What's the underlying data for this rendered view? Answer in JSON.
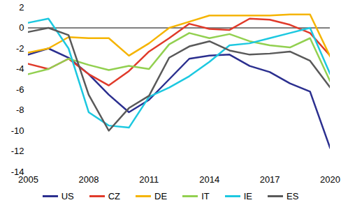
{
  "chart_data": {
    "type": "line",
    "x": [
      2005,
      2006,
      2007,
      2008,
      2009,
      2010,
      2011,
      2012,
      2013,
      2014,
      2015,
      2016,
      2017,
      2018,
      2019,
      2020
    ],
    "xlim": [
      2005,
      2020
    ],
    "xticks": [
      2005,
      2008,
      2011,
      2014,
      2017,
      2020
    ],
    "ylim": [
      -14,
      2
    ],
    "yticks": [
      -14,
      -12,
      -10,
      -8,
      -6,
      -4,
      -2,
      0,
      2
    ],
    "grid": false,
    "legend": "bottom",
    "series": [
      {
        "name": "US",
        "color": "#2b2f8f",
        "values": [
          -2.6,
          -2.0,
          -2.9,
          -4.5,
          -6.5,
          -8.2,
          -7.0,
          -5.0,
          -3.0,
          -2.7,
          -2.6,
          -3.7,
          -4.3,
          -5.4,
          -6.2,
          -11.7
        ]
      },
      {
        "name": "CZ",
        "color": "#e03a2a",
        "values": [
          -3.5,
          -4.0,
          -3.0,
          -4.5,
          -5.6,
          -4.2,
          -2.3,
          -1.0,
          0.4,
          -0.1,
          -0.2,
          0.9,
          0.8,
          0.3,
          -0.5,
          -2.7
        ]
      },
      {
        "name": "DE",
        "color": "#f5b400",
        "values": [
          -2.4,
          -2.0,
          -0.9,
          -1.0,
          -1.0,
          -2.7,
          -1.5,
          0.0,
          0.6,
          1.2,
          1.2,
          1.2,
          1.2,
          1.3,
          1.3,
          -2.8
        ]
      },
      {
        "name": "IT",
        "color": "#92d050",
        "values": [
          -4.5,
          -4.0,
          -3.0,
          -3.6,
          -4.1,
          -3.7,
          -4.0,
          -1.6,
          -0.5,
          -1.0,
          -0.6,
          -1.3,
          -1.7,
          -1.9,
          -1.0,
          -5.2
        ]
      },
      {
        "name": "IE",
        "color": "#1cc8e0",
        "values": [
          0.5,
          0.9,
          -2.0,
          -8.2,
          -9.5,
          -9.7,
          -6.7,
          -5.8,
          -4.7,
          -3.3,
          -1.7,
          -1.5,
          -1.0,
          -0.5,
          0.0,
          -4.5
        ]
      },
      {
        "name": "ES",
        "color": "#595959",
        "values": [
          -0.4,
          0.0,
          -0.7,
          -6.5,
          -10.0,
          -7.8,
          -6.6,
          -2.9,
          -1.8,
          -1.3,
          -2.2,
          -2.6,
          -2.5,
          -2.3,
          -3.2,
          -5.8
        ]
      }
    ]
  }
}
